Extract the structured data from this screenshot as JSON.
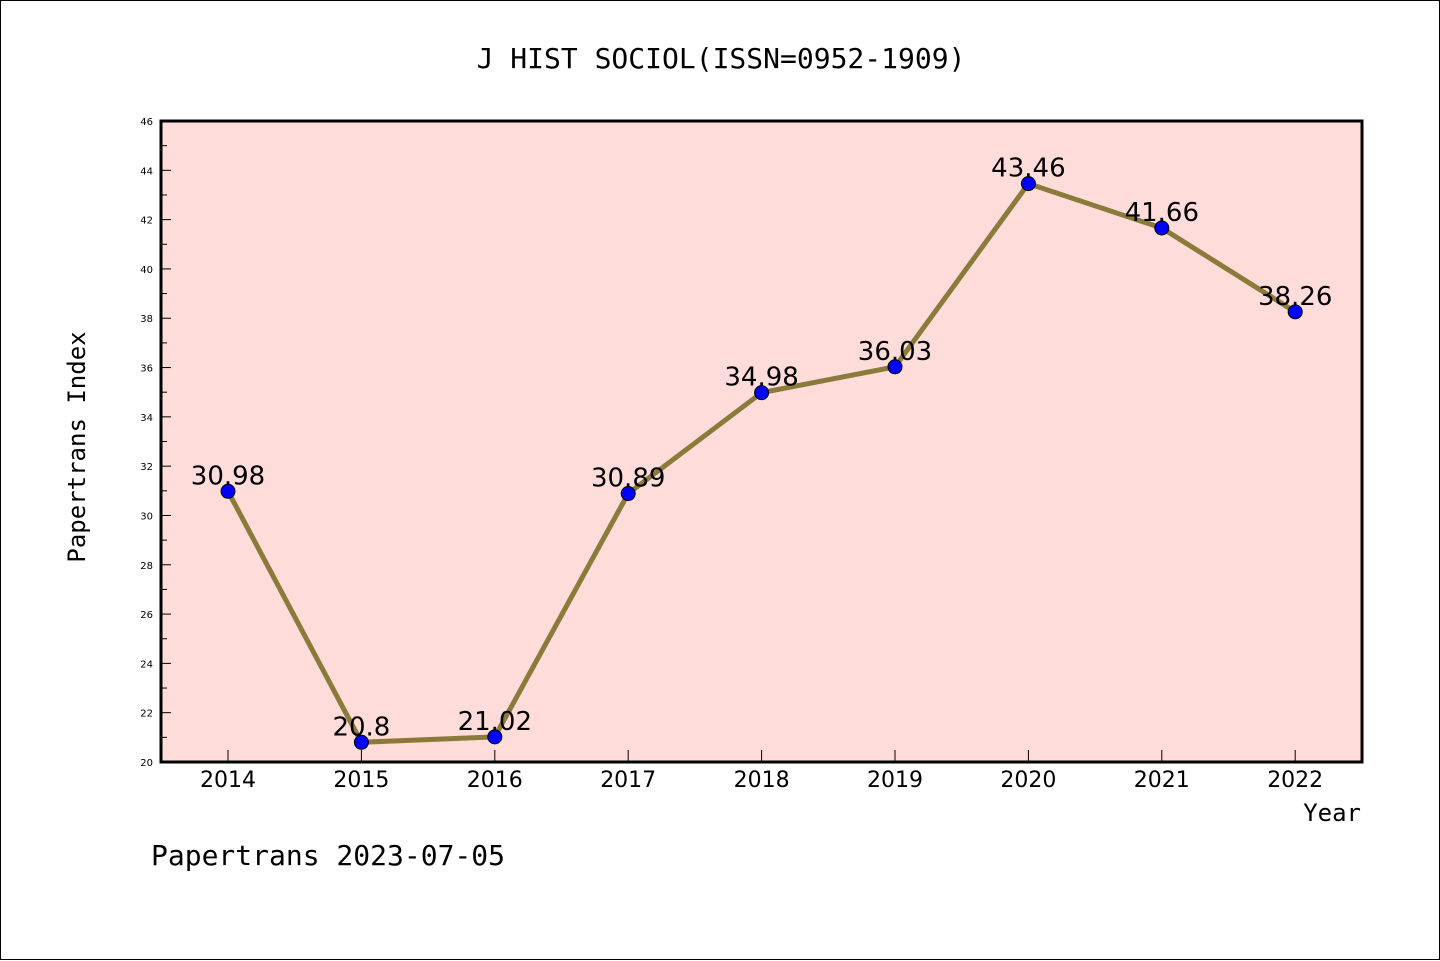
{
  "footer": "Papertrans 2023-07-05",
  "colors": {
    "plot_background": "#fddcd9",
    "line": "#8b7b3b",
    "marker": "#0000ff",
    "axis": "#000000"
  },
  "chart_data": {
    "type": "line",
    "title": "J HIST SOCIOL(ISSN=0952-1909)",
    "xlabel": "Year",
    "ylabel": "Papertrans Index",
    "categories": [
      "2014",
      "2015",
      "2016",
      "2017",
      "2018",
      "2019",
      "2020",
      "2021",
      "2022"
    ],
    "series": [
      {
        "values": [
          30.98,
          20.8,
          21.02,
          30.89,
          34.98,
          36.03,
          43.46,
          41.66,
          38.26
        ],
        "labels": [
          "30.98",
          "20.8",
          "21.02",
          "30.89",
          "34.98",
          "36.03",
          "43.46",
          "41.66",
          "38.26"
        ]
      }
    ],
    "ylim": [
      20,
      46
    ],
    "yticks": [
      "20",
      "22",
      "24",
      "26",
      "28",
      "30",
      "32",
      "34",
      "36",
      "38",
      "40",
      "42",
      "44",
      "46"
    ],
    "grid": false,
    "legend": "none"
  }
}
